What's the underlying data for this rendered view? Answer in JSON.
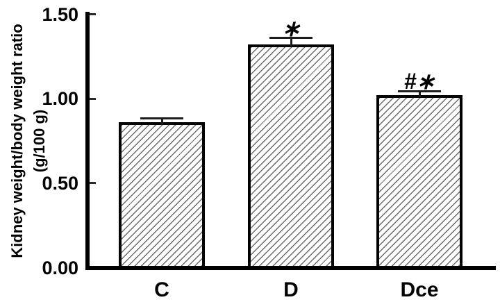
{
  "chart_data": {
    "type": "bar",
    "title": "",
    "ylabel_line1": "Kidney weight/body weight ratio",
    "ylabel_line2": "(g/100 g)",
    "categories": [
      "C",
      "D",
      "Dce"
    ],
    "values": [
      0.86,
      1.32,
      1.02
    ],
    "errors": [
      0.025,
      0.04,
      0.025
    ],
    "annotations": [
      "",
      "∗",
      "#∗"
    ],
    "yticks": [
      0,
      0.5,
      1,
      1.5
    ],
    "ytick_labels": [
      "0.00",
      "0.50",
      "1.00",
      "1.50"
    ],
    "ylim": [
      0,
      1.5
    ],
    "grid": false,
    "legend": "none",
    "colors": {
      "bar_fill": "#ffffff",
      "hatch": "#6b6b6b",
      "axis": "#000000",
      "text": "#000000",
      "background": "#ffffff"
    }
  }
}
